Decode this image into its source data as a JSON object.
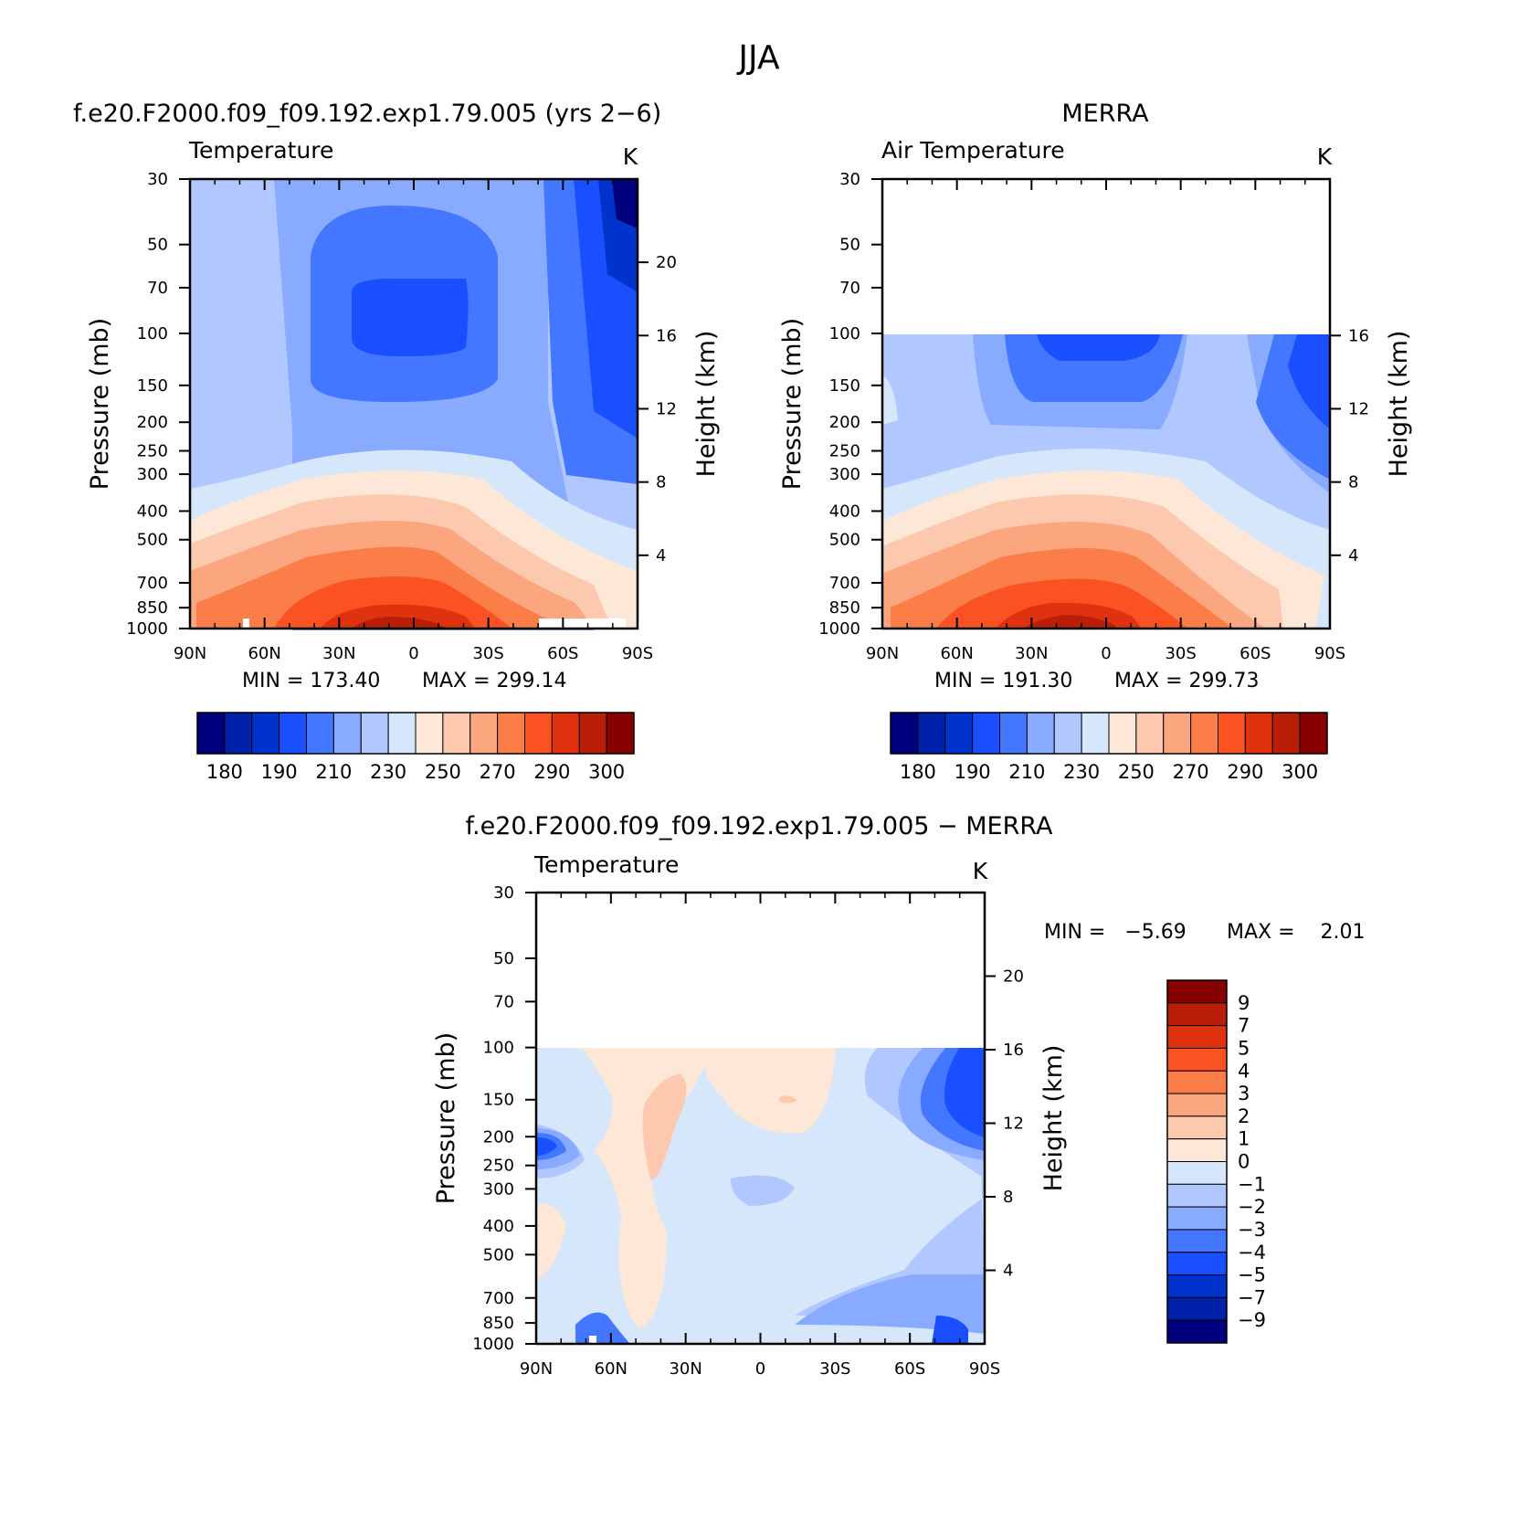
{
  "title": "JJA",
  "chart_data": [
    {
      "type": "contour",
      "subtitle": "f.e20.F2000.f09_f09.192.exp1.79.005 (yrs 2−6)",
      "variable": "Temperature",
      "units": "K",
      "ylabel": "Pressure (mb)",
      "y2label": "Height (km)",
      "x_ticks": [
        "90N",
        "60N",
        "30N",
        "0",
        "30S",
        "60S",
        "90S"
      ],
      "y_ticks": [
        30,
        50,
        70,
        100,
        150,
        200,
        250,
        300,
        400,
        500,
        700,
        850,
        1000
      ],
      "y2_ticks": [
        20,
        16,
        12,
        8,
        4
      ],
      "min_label": "MIN = 173.40",
      "max_label": "MAX = 299.14",
      "min": 173.4,
      "max": 299.14,
      "colorbar_labels": [
        "180",
        "190",
        "210",
        "230",
        "250",
        "270",
        "290",
        "300"
      ],
      "data_top_pressure": 30
    },
    {
      "type": "contour",
      "subtitle": "MERRA",
      "variable": "Air Temperature",
      "units": "K",
      "ylabel": "Pressure (mb)",
      "y2label": "Height (km)",
      "x_ticks": [
        "90N",
        "60N",
        "30N",
        "0",
        "30S",
        "60S",
        "90S"
      ],
      "y_ticks": [
        30,
        50,
        70,
        100,
        150,
        200,
        250,
        300,
        400,
        500,
        700,
        850,
        1000
      ],
      "y2_ticks": [
        16,
        12,
        8,
        4
      ],
      "min_label": "MIN = 191.30",
      "max_label": "MAX = 299.73",
      "min": 191.3,
      "max": 299.73,
      "colorbar_labels": [
        "180",
        "190",
        "210",
        "230",
        "250",
        "270",
        "290",
        "300"
      ],
      "data_top_pressure": 100
    },
    {
      "type": "contour",
      "subtitle": "f.e20.F2000.f09_f09.192.exp1.79.005 − MERRA",
      "variable": "Temperature",
      "units": "K",
      "ylabel": "Pressure (mb)",
      "y2label": "Height (km)",
      "x_ticks": [
        "90N",
        "60N",
        "30N",
        "0",
        "30S",
        "60S",
        "90S"
      ],
      "y_ticks": [
        30,
        50,
        70,
        100,
        150,
        200,
        250,
        300,
        400,
        500,
        700,
        850,
        1000
      ],
      "y2_ticks": [
        20,
        16,
        12,
        8,
        4
      ],
      "min_label": "MIN =   −5.69",
      "max_label": "MAX =    2.01",
      "min": -5.69,
      "max": 2.01,
      "colorbar_labels": [
        "9",
        "7",
        "5",
        "4",
        "3",
        "2",
        "1",
        "0",
        "−1",
        "−2",
        "−3",
        "−4",
        "−5",
        "−7",
        "−9"
      ],
      "data_top_pressure": 100
    }
  ],
  "colors": {
    "abs_scale": [
      "#00007f",
      "#0022aa",
      "#0033cc",
      "#1a4fff",
      "#4477ff",
      "#88aaff",
      "#b0c8ff",
      "#d6e6fb",
      "#fde8d8",
      "#fcc9ae",
      "#fba67f",
      "#fb7d47",
      "#fb5223",
      "#e0320f",
      "#b81e08",
      "#870101"
    ],
    "diff_scale": [
      "#870101",
      "#b81e08",
      "#e0320f",
      "#fb5223",
      "#fb7d47",
      "#fba67f",
      "#fcc9ae",
      "#fde8d8",
      "#d6e6fb",
      "#b0c8ff",
      "#88aaff",
      "#4477ff",
      "#1a4fff",
      "#0033cc",
      "#0022aa",
      "#00007f"
    ]
  }
}
